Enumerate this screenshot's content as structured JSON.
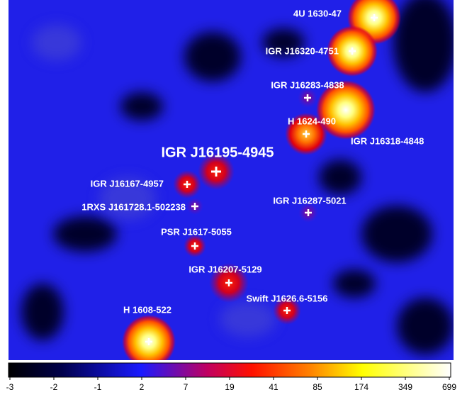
{
  "sources": [
    {
      "name": "4U 1630-47"
    },
    {
      "name": "IGR J16320-4751"
    },
    {
      "name": "IGR J16283-4838"
    },
    {
      "name": "H 1624-490"
    },
    {
      "name": "IGR J16318-4848"
    },
    {
      "name": "IGR J16195-4945"
    },
    {
      "name": "IGR J16167-4957"
    },
    {
      "name": "1RXS J161728.1-502238"
    },
    {
      "name": "IGR J16287-5021"
    },
    {
      "name": "PSR J1617-5055"
    },
    {
      "name": "IGR J16207-5129"
    },
    {
      "name": "Swift J1626.6-5156"
    },
    {
      "name": "H 1608-522"
    }
  ],
  "colorbar": {
    "ticks": [
      -3,
      -2,
      -1,
      2,
      7,
      19,
      41,
      85,
      174,
      349,
      699
    ]
  }
}
